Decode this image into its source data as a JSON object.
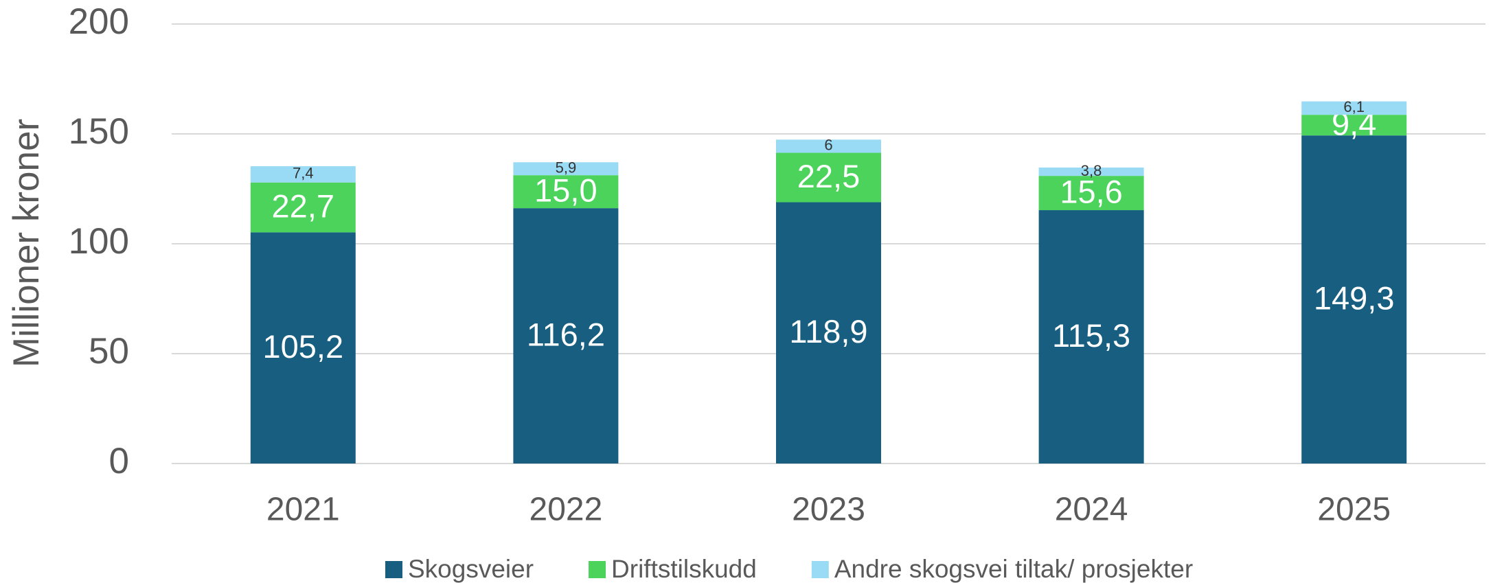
{
  "chart_data": {
    "type": "stacked_bar",
    "y_axis_label": "Millioner kroner",
    "categories": [
      "2021",
      "2022",
      "2023",
      "2024",
      "2025"
    ],
    "series": [
      {
        "name": "Skogsveier",
        "color": "#175e80",
        "values": [
          105.2,
          116.2,
          118.9,
          115.3,
          149.3
        ],
        "value_labels": [
          "105,2",
          "116,2",
          "118,9",
          "115,3",
          "149,3"
        ]
      },
      {
        "name": "Driftstilskudd",
        "color": "#4cd35c",
        "values": [
          22.7,
          15.0,
          22.5,
          15.6,
          9.4
        ],
        "value_labels": [
          "22,7",
          "15,0",
          "22,5",
          "15,6",
          "9,4"
        ]
      },
      {
        "name": "Andre skogsvei tiltak/ prosjekter",
        "color": "#99dbf5",
        "values": [
          7.4,
          5.9,
          6,
          3.8,
          6.1
        ],
        "value_labels": [
          "7,4",
          "5,9",
          "6",
          "3,8",
          "6,1"
        ]
      }
    ],
    "ylim": [
      0,
      200
    ],
    "yticks": [
      0,
      50,
      100,
      150,
      200
    ],
    "grid": true,
    "legend": "bottom"
  }
}
